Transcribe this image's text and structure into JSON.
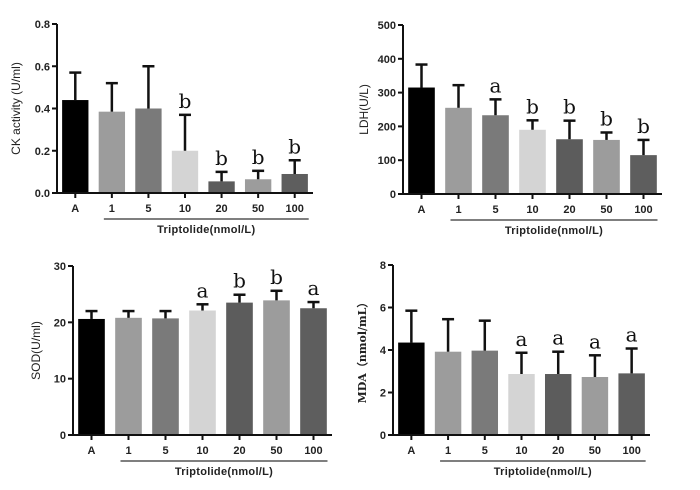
{
  "chart_data": [
    {
      "id": "ck",
      "type": "bar",
      "title": "",
      "ylabel": "CK activity (U/ml)",
      "xlabel": "Triptolide(nmol/L)",
      "categories": [
        "A",
        "1",
        "5",
        "10",
        "20",
        "50",
        "100"
      ],
      "group_bracket_from": "1",
      "values": [
        0.44,
        0.385,
        0.4,
        0.2,
        0.055,
        0.065,
        0.09
      ],
      "error_upper": [
        0.57,
        0.52,
        0.6,
        0.37,
        0.1,
        0.105,
        0.155
      ],
      "significance": [
        "",
        "",
        "",
        "b",
        "b",
        "b",
        "b"
      ],
      "ylim": [
        0,
        0.8
      ],
      "yticks": [
        "0.0",
        "0.2",
        "0.4",
        "0.6",
        "0.8"
      ],
      "ytick_values": [
        0,
        0.2,
        0.4,
        0.6,
        0.8
      ],
      "bar_colors": [
        "#000000",
        "#9c9c9c",
        "#7a7a7a",
        "#d4d4d4",
        "#5c5c5c",
        "#9c9c9c",
        "#5e5e5e"
      ],
      "grid": false
    },
    {
      "id": "ldh",
      "type": "bar",
      "title": "",
      "ylabel": "LDH(U/L)",
      "xlabel": "Triptolide(nmol/L)",
      "categories": [
        "A",
        "1",
        "5",
        "10",
        "20",
        "50",
        "100"
      ],
      "group_bracket_from": "1",
      "values": [
        315,
        255,
        233,
        190,
        162,
        160,
        115
      ],
      "error_upper": [
        383,
        322,
        280,
        218,
        217,
        182,
        160
      ],
      "significance": [
        "",
        "",
        "a",
        "b",
        "b",
        "b",
        "b"
      ],
      "ylim": [
        0,
        500
      ],
      "yticks": [
        "0",
        "100",
        "200",
        "300",
        "400",
        "500"
      ],
      "ytick_values": [
        0,
        100,
        200,
        300,
        400,
        500
      ],
      "bar_colors": [
        "#000000",
        "#9c9c9c",
        "#7a7a7a",
        "#d4d4d4",
        "#5c5c5c",
        "#9c9c9c",
        "#5e5e5e"
      ],
      "grid": false
    },
    {
      "id": "sod",
      "type": "bar",
      "title": "",
      "ylabel": "SOD(U/ml)",
      "xlabel": "Triptolide(nmol/L)",
      "categories": [
        "A",
        "1",
        "5",
        "10",
        "20",
        "50",
        "100"
      ],
      "group_bracket_from": "1",
      "values": [
        20.6,
        20.8,
        20.7,
        22.1,
        23.5,
        23.9,
        22.5
      ],
      "error_upper": [
        22.0,
        22.0,
        22.0,
        23.2,
        24.9,
        25.6,
        23.6
      ],
      "significance": [
        "",
        "",
        "",
        "a",
        "b",
        "b",
        "a"
      ],
      "ylim": [
        0,
        30
      ],
      "yticks": [
        "0",
        "10",
        "20",
        "30"
      ],
      "ytick_values": [
        0,
        10,
        20,
        30
      ],
      "bar_colors": [
        "#000000",
        "#9c9c9c",
        "#7a7a7a",
        "#d4d4d4",
        "#5c5c5c",
        "#9c9c9c",
        "#5e5e5e"
      ],
      "grid": false
    },
    {
      "id": "mda",
      "type": "bar",
      "title": "",
      "ylabel": "MDA（nmol/mL）",
      "xlabel": "Triptolide(nmol/L)",
      "categories": [
        "A",
        "1",
        "5",
        "10",
        "20",
        "50",
        "100"
      ],
      "group_bracket_from": "1",
      "values": [
        4.35,
        3.92,
        3.97,
        2.87,
        2.87,
        2.73,
        2.9
      ],
      "error_upper": [
        5.85,
        5.45,
        5.38,
        3.87,
        3.92,
        3.75,
        4.07
      ],
      "significance": [
        "",
        "",
        "",
        "a",
        "a",
        "a",
        "a"
      ],
      "ylim": [
        0,
        8
      ],
      "yticks": [
        "0",
        "2",
        "4",
        "6",
        "8"
      ],
      "ytick_values": [
        0,
        2,
        4,
        6,
        8
      ],
      "bar_colors": [
        "#000000",
        "#9c9c9c",
        "#7a7a7a",
        "#d4d4d4",
        "#5c5c5c",
        "#9c9c9c",
        "#5e5e5e"
      ],
      "grid": false
    }
  ]
}
